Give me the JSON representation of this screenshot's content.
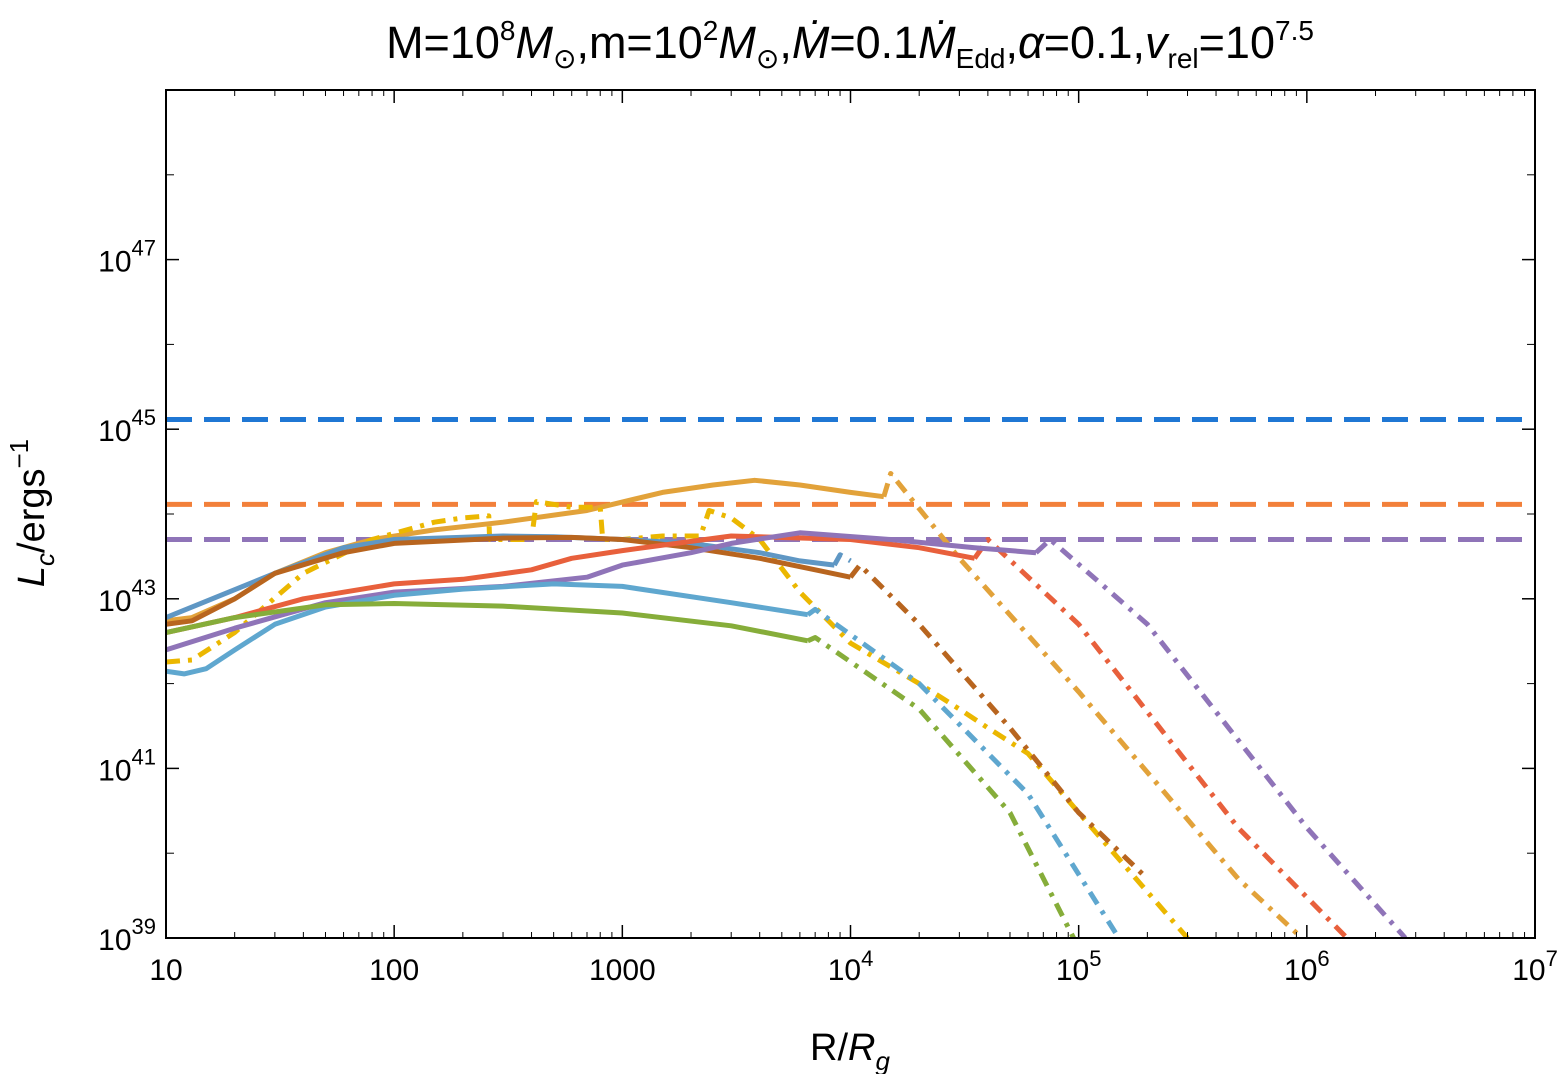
{
  "chart_data": {
    "type": "line",
    "title": {
      "p1": "M=10",
      "p1_exp": "8",
      "p2": "M",
      "p2_sub": "⊙",
      "p3": ",m=10",
      "p3_exp": "2",
      "p4": "M",
      "p4_sub": "⊙",
      "p5": ",",
      "p6": "Ṁ",
      "p7": "=0.1",
      "p8": "Ṁ",
      "p8_sub": "Edd",
      "p9": ",",
      "p10": "α",
      "p11": "=0.1,",
      "p12": "v",
      "p12_sub": "rel",
      "p13": "=10",
      "p13_exp": "7.5"
    },
    "xlabel": {
      "main": "R/",
      "ital": "R",
      "sub": "g"
    },
    "ylabel": {
      "ital": "L",
      "sub": "c",
      "main": "/ergs",
      "sup": "−1"
    },
    "x_scale": "log",
    "y_scale": "log",
    "xlim": [
      10,
      10000000
    ],
    "ylim": [
      1e+39,
      1e+49
    ],
    "x_ticks": [
      {
        "v": 10,
        "base": "10",
        "exp": ""
      },
      {
        "v": 100,
        "base": "100",
        "exp": ""
      },
      {
        "v": 1000,
        "base": "1000",
        "exp": ""
      },
      {
        "v": 10000,
        "base": "10",
        "exp": "4"
      },
      {
        "v": 100000,
        "base": "10",
        "exp": "5"
      },
      {
        "v": 1000000,
        "base": "10",
        "exp": "6"
      },
      {
        "v": 10000000,
        "base": "10",
        "exp": "7"
      }
    ],
    "y_ticks": [
      {
        "v": 1e+39,
        "base": "10",
        "exp": "39"
      },
      {
        "v": 1e+41,
        "base": "10",
        "exp": "41"
      },
      {
        "v": 1e+43,
        "base": "10",
        "exp": "43"
      },
      {
        "v": 1e+45,
        "base": "10",
        "exp": "45"
      },
      {
        "v": 1e+47,
        "base": "10",
        "exp": "47"
      }
    ],
    "y_minor_ticks": [
      1e+40,
      1e+42,
      1e+44,
      1e+46,
      1e+48
    ],
    "grid": false,
    "legend": "none",
    "hlines": [
      {
        "y": 1.3e+45,
        "color": "#1f77d4",
        "style": "dashed"
      },
      {
        "y": 1.3e+44,
        "color": "#f2803a",
        "style": "dashed"
      },
      {
        "y": 5e+43,
        "color": "#8f74b8",
        "style": "dashed"
      }
    ],
    "series": [
      {
        "color": "#e2a23a",
        "style": "solid",
        "points": [
          [
            10,
            5.5e+42
          ],
          [
            13,
            6e+42
          ],
          [
            20,
            1e+43
          ],
          [
            30,
            2e+43
          ],
          [
            50,
            3.5e+43
          ],
          [
            80,
            5e+43
          ],
          [
            150,
            6.5e+43
          ],
          [
            300,
            8e+43
          ],
          [
            700,
            1.1e+44
          ],
          [
            1500,
            1.8e+44
          ],
          [
            2500,
            2.2e+44
          ],
          [
            3800,
            2.5e+44
          ],
          [
            6000,
            2.2e+44
          ],
          [
            10000,
            1.8e+44
          ],
          [
            14000,
            1.6e+44
          ]
        ]
      },
      {
        "color": "#e2a23a",
        "style": "dashdot",
        "points": [
          [
            14000,
            1.6e+44
          ],
          [
            15000,
            3e+44
          ],
          [
            30000,
            3e+43
          ],
          [
            100000,
            8e+41
          ],
          [
            500000,
            5e+39
          ],
          [
            950000,
            1e+39
          ]
        ]
      },
      {
        "color": "#ebb700",
        "style": "dashdot",
        "points": [
          [
            10,
            1.8e+42
          ],
          [
            13,
            1.9e+42
          ],
          [
            20,
            4e+42
          ],
          [
            40,
            2e+43
          ],
          [
            80,
            5e+43
          ],
          [
            150,
            8e+43
          ],
          [
            200,
            9e+43
          ],
          [
            260,
            9.5e+43
          ],
          [
            262,
            5e+43
          ],
          [
            300,
            5e+43
          ],
          [
            400,
            5e+43
          ],
          [
            420,
            1.4e+44
          ],
          [
            600,
            1.2e+44
          ],
          [
            800,
            1.2e+44
          ],
          [
            820,
            5e+43
          ],
          [
            1000,
            5e+43
          ],
          [
            1500,
            5.5e+43
          ],
          [
            2200,
            5.5e+43
          ],
          [
            2400,
            1.1e+44
          ],
          [
            3000,
            9e+43
          ],
          [
            4000,
            5e+43
          ],
          [
            6000,
            1.2e+43
          ],
          [
            10000,
            3e+42
          ],
          [
            20000,
            1e+42
          ],
          [
            30000,
            5e+41
          ],
          [
            40000,
            3e+41
          ],
          [
            60000,
            1.5e+41
          ],
          [
            100000,
            3e+40
          ],
          [
            300000,
            1e+39
          ]
        ]
      },
      {
        "color": "#5f97c4",
        "style": "solid",
        "points": [
          [
            10,
            6e+42
          ],
          [
            30,
            2e+43
          ],
          [
            60,
            4e+43
          ],
          [
            100,
            5e+43
          ],
          [
            300,
            5.5e+43
          ],
          [
            500,
            5.4e+43
          ],
          [
            1000,
            5e+43
          ],
          [
            2000,
            4.5e+43
          ],
          [
            4000,
            3.5e+43
          ],
          [
            6000,
            2.8e+43
          ],
          [
            8500,
            2.5e+43
          ]
        ]
      },
      {
        "color": "#5f97c4",
        "style": "dashdot",
        "points": [
          [
            8500,
            2.5e+43
          ],
          [
            9000,
            3.3e+43
          ],
          [
            10000,
            2.8e+43
          ]
        ]
      },
      {
        "color": "#b8651f",
        "style": "solid",
        "points": [
          [
            10,
            5e+42
          ],
          [
            13,
            5.5e+42
          ],
          [
            20,
            1e+43
          ],
          [
            30,
            2e+43
          ],
          [
            60,
            3.5e+43
          ],
          [
            100,
            4.5e+43
          ],
          [
            300,
            5.2e+43
          ],
          [
            600,
            5.3e+43
          ],
          [
            1000,
            5e+43
          ],
          [
            2000,
            4e+43
          ],
          [
            4000,
            3e+43
          ],
          [
            7000,
            2.2e+43
          ],
          [
            10000,
            1.8e+43
          ]
        ]
      },
      {
        "color": "#b8651f",
        "style": "dashdot",
        "points": [
          [
            10000,
            1.8e+43
          ],
          [
            11000,
            2.5e+43
          ],
          [
            20000,
            5e+42
          ],
          [
            50000,
            3e+41
          ],
          [
            100000,
            3e+40
          ],
          [
            200000,
            5e+39
          ]
        ]
      },
      {
        "color": "#e8603c",
        "style": "solid",
        "points": [
          [
            10,
            4e+42
          ],
          [
            20,
            6e+42
          ],
          [
            40,
            1e+43
          ],
          [
            100,
            1.5e+43
          ],
          [
            200,
            1.7e+43
          ],
          [
            400,
            2.2e+43
          ],
          [
            600,
            3e+43
          ],
          [
            1000,
            3.7e+43
          ],
          [
            3000,
            5.5e+43
          ],
          [
            10000,
            5e+43
          ],
          [
            20000,
            4e+43
          ],
          [
            35000,
            3e+43
          ]
        ]
      },
      {
        "color": "#e8603c",
        "style": "dashdot",
        "points": [
          [
            35000,
            3e+43
          ],
          [
            40000,
            5e+43
          ],
          [
            100000,
            5e+42
          ],
          [
            500000,
            2e+40
          ],
          [
            1500000,
            1e+39
          ]
        ]
      },
      {
        "color": "#8f74b8",
        "style": "solid",
        "points": [
          [
            10,
            2.5e+42
          ],
          [
            20,
            4.5e+42
          ],
          [
            50,
            9e+42
          ],
          [
            100,
            1.2e+43
          ],
          [
            300,
            1.4e+43
          ],
          [
            700,
            1.8e+43
          ],
          [
            1000,
            2.5e+43
          ],
          [
            2000,
            3.5e+43
          ],
          [
            3000,
            4.5e+43
          ],
          [
            6000,
            6e+43
          ],
          [
            15000,
            5e+43
          ],
          [
            35000,
            4e+43
          ],
          [
            65000,
            3.5e+43
          ]
        ]
      },
      {
        "color": "#8f74b8",
        "style": "dashdot",
        "points": [
          [
            65000,
            3.5e+43
          ],
          [
            75000,
            5e+43
          ],
          [
            200000,
            5e+42
          ],
          [
            1000000,
            2e+40
          ],
          [
            2700000,
            1e+39
          ]
        ]
      },
      {
        "color": "#5fa7cf",
        "style": "solid",
        "points": [
          [
            10,
            1.4e+42
          ],
          [
            12,
            1.3e+42
          ],
          [
            15,
            1.5e+42
          ],
          [
            20,
            2.5e+42
          ],
          [
            30,
            5e+42
          ],
          [
            50,
            8e+42
          ],
          [
            100,
            1.1e+43
          ],
          [
            200,
            1.3e+43
          ],
          [
            500,
            1.5e+43
          ],
          [
            1000,
            1.4e+43
          ],
          [
            3000,
            9e+42
          ],
          [
            6500,
            6.5e+42
          ]
        ]
      },
      {
        "color": "#5fa7cf",
        "style": "dashdot",
        "points": [
          [
            6500,
            6.5e+42
          ],
          [
            7000,
            7.5e+42
          ],
          [
            20000,
            1e+42
          ],
          [
            60000,
            5e+40
          ],
          [
            150000,
            1e+39
          ]
        ]
      },
      {
        "color": "#86ad3a",
        "style": "solid",
        "points": [
          [
            10,
            4e+42
          ],
          [
            20,
            6e+42
          ],
          [
            50,
            8.5e+42
          ],
          [
            100,
            8.8e+42
          ],
          [
            300,
            8.2e+42
          ],
          [
            1000,
            6.8e+42
          ],
          [
            3000,
            4.8e+42
          ],
          [
            6500,
            3.2e+42
          ]
        ]
      },
      {
        "color": "#86ad3a",
        "style": "dashdot",
        "points": [
          [
            6500,
            3.2e+42
          ],
          [
            7000,
            3.5e+42
          ],
          [
            20000,
            5e+41
          ],
          [
            50000,
            3e+40
          ],
          [
            95000,
            1e+39
          ]
        ]
      }
    ]
  }
}
